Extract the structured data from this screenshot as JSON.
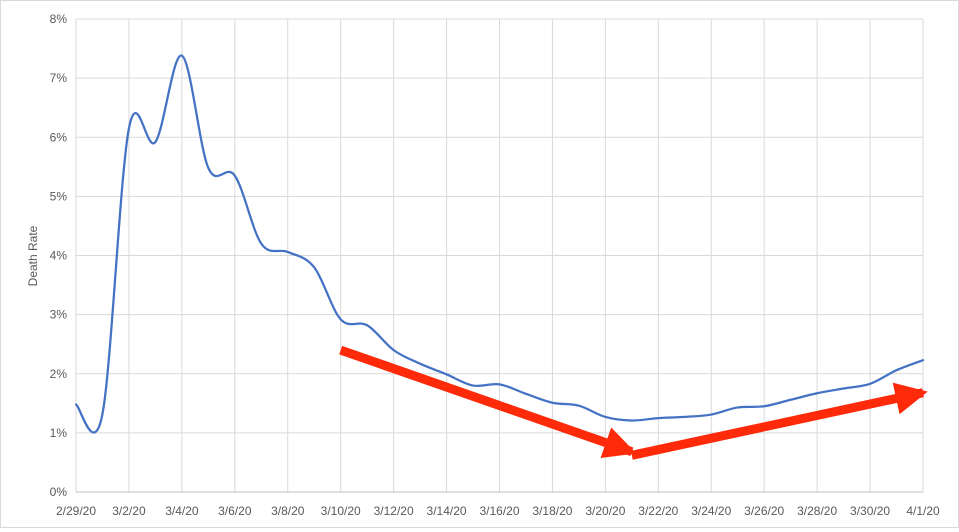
{
  "chart_data": {
    "type": "line",
    "ylabel": "Death Rate",
    "xlabel": "",
    "title": "",
    "y_ticks": [
      "0%",
      "1%",
      "2%",
      "3%",
      "4%",
      "5%",
      "6%",
      "7%",
      "8%"
    ],
    "ylim": [
      0,
      8
    ],
    "x_ticks": [
      "2/29/20",
      "3/2/20",
      "3/4/20",
      "3/6/20",
      "3/8/20",
      "3/10/20",
      "3/12/20",
      "3/14/20",
      "3/16/20",
      "3/18/20",
      "3/20/20",
      "3/22/20",
      "3/24/20",
      "3/26/20",
      "3/28/20",
      "3/30/20",
      "4/1/20"
    ],
    "grid": true,
    "legend": "none",
    "series": [
      {
        "color": "#4472c4",
        "x": [
          "2/29/20",
          "3/1/20",
          "3/2/20",
          "3/3/20",
          "3/4/20",
          "3/5/20",
          "3/6/20",
          "3/7/20",
          "3/8/20",
          "3/9/20",
          "3/10/20",
          "3/11/20",
          "3/12/20",
          "3/13/20",
          "3/14/20",
          "3/15/20",
          "3/16/20",
          "3/17/20",
          "3/18/20",
          "3/19/20",
          "3/20/20",
          "3/21/20",
          "3/22/20",
          "3/23/20",
          "3/24/20",
          "3/25/20",
          "3/26/20",
          "3/27/20",
          "3/28/20",
          "3/29/20",
          "3/30/20",
          "3/31/20",
          "4/1/20"
        ],
        "values": [
          1.48,
          1.32,
          6.15,
          5.92,
          7.38,
          5.48,
          5.35,
          4.2,
          4.06,
          3.8,
          2.92,
          2.82,
          2.4,
          2.17,
          1.99,
          1.8,
          1.82,
          1.66,
          1.51,
          1.46,
          1.27,
          1.21,
          1.25,
          1.27,
          1.31,
          1.43,
          1.45,
          1.56,
          1.67,
          1.75,
          1.83,
          2.06,
          2.23
        ]
      }
    ],
    "annotations": [
      {
        "type": "arrow",
        "color": "#ff2a0a",
        "from": {
          "x": "3/10/20",
          "y": 2.4
        },
        "to": {
          "x": "3/21/20",
          "y": 0.68
        }
      },
      {
        "type": "arrow",
        "color": "#ff2a0a",
        "from": {
          "x": "3/21/20",
          "y": 0.62
        },
        "to": {
          "x": "4/1/20",
          "y": 1.68
        }
      }
    ]
  }
}
